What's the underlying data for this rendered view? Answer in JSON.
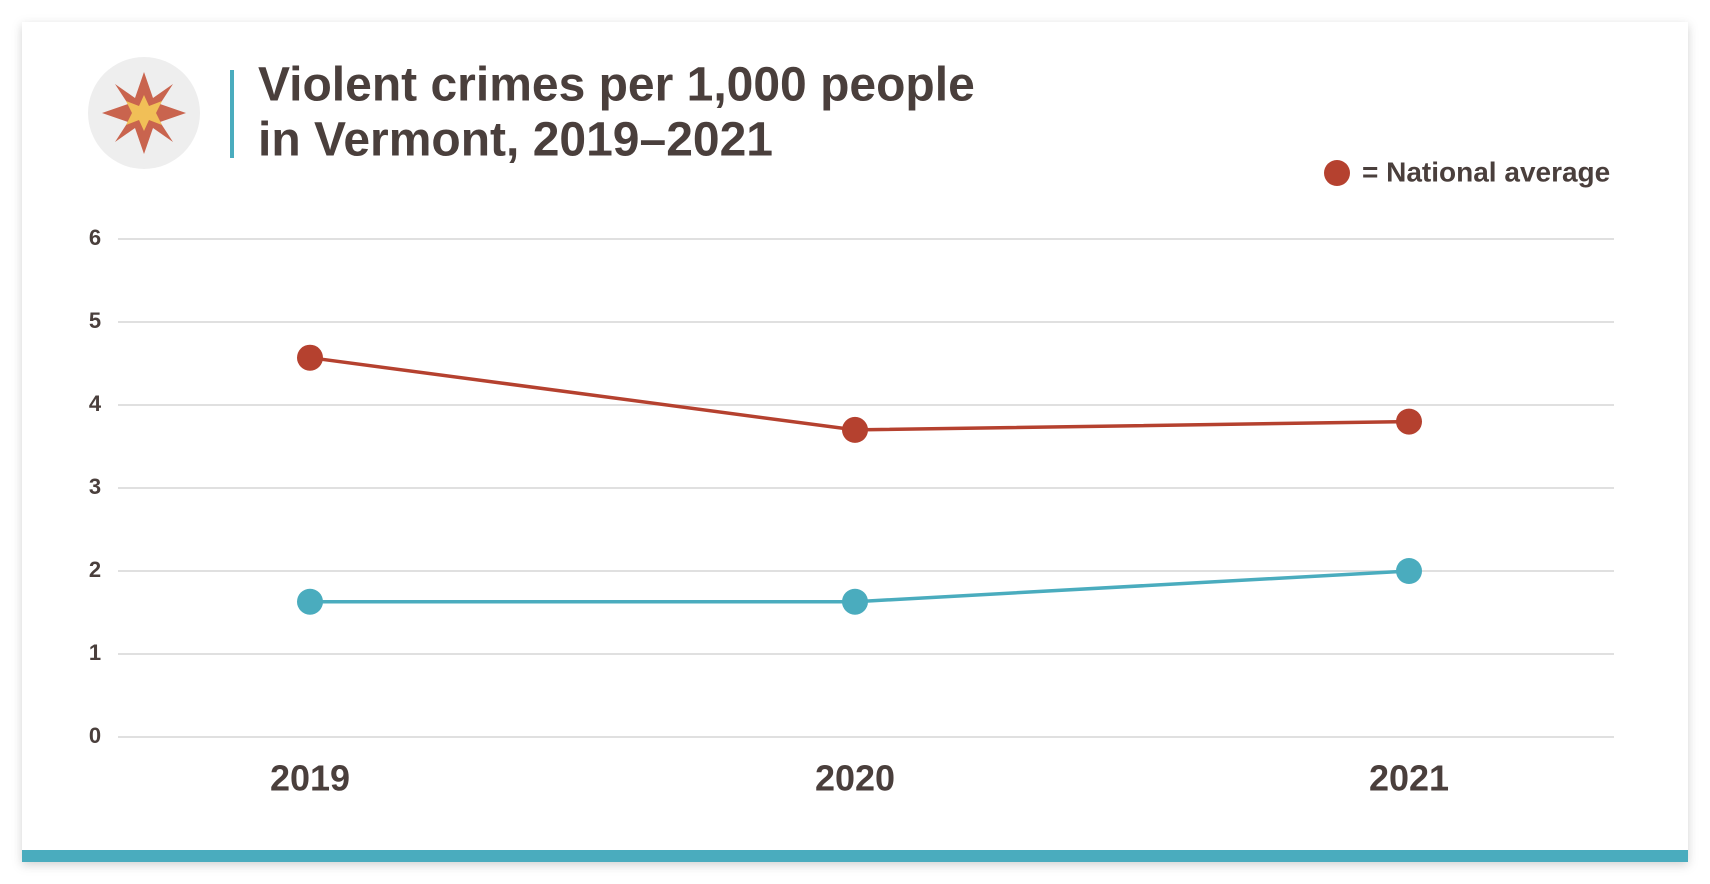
{
  "chart_data": {
    "type": "line",
    "title": [
      "Violent crimes per 1,000 people",
      "in Vermont, 2019–2021"
    ],
    "categories": [
      "2019",
      "2020",
      "2021"
    ],
    "series": [
      {
        "name": "= National average",
        "color": "#b5412f",
        "values": [
          4.57,
          3.7,
          3.8
        ]
      },
      {
        "color": "#4aacbe",
        "values": [
          1.63,
          1.63,
          2.0
        ]
      }
    ],
    "ylim": [
      0,
      6
    ],
    "yticks": [
      0,
      1,
      2,
      3,
      4,
      5,
      6
    ],
    "grid": true,
    "legend": "top-right"
  }
}
